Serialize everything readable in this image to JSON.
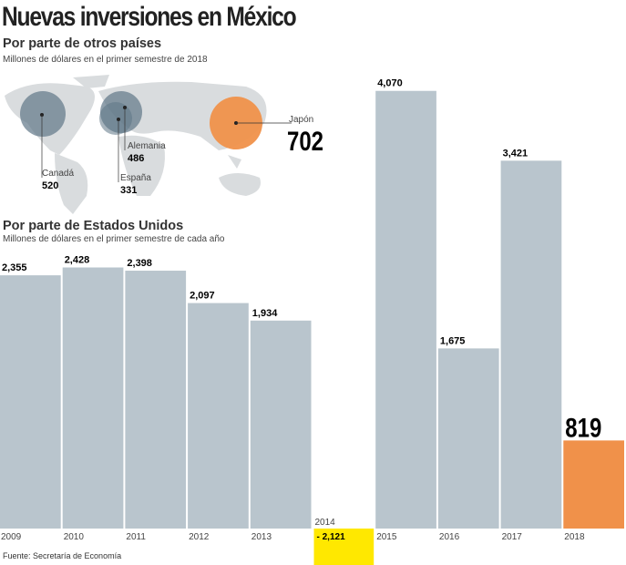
{
  "title": "Nuevas inversiones en México",
  "section_others": {
    "heading": "Por parte de otros países",
    "note": "Millones de dólares en el primer semestre de 2018",
    "countries": [
      {
        "name": "Canadá",
        "value": "520"
      },
      {
        "name": "Alemania",
        "value": "486"
      },
      {
        "name": "España",
        "value": "331"
      },
      {
        "name": "Japón",
        "value": "702"
      }
    ]
  },
  "section_us": {
    "heading": "Por parte de Estados Unidos",
    "note": "Millones de dólares en el primer semestre de cada año"
  },
  "source": "Fuente: Secretaría de Economía",
  "colors": {
    "bar": "#b9c5cd",
    "highlight": "#f0914a",
    "negative": "#ffe800",
    "bubble": "#5f7687"
  },
  "chart_data": {
    "type": "bar",
    "categories": [
      "2009",
      "2010",
      "2011",
      "2012",
      "2013",
      "2014",
      "2015",
      "2016",
      "2017",
      "2018"
    ],
    "values": [
      2355,
      2428,
      2398,
      2097,
      1934,
      -2121,
      4070,
      1675,
      3421,
      819
    ],
    "labels": [
      "2,355",
      "2,428",
      "2,398",
      "2,097",
      "1,934",
      "- 2,121",
      "4,070",
      "1,675",
      "3,421",
      "819"
    ],
    "title": "Por parte de Estados Unidos",
    "xlabel": "",
    "ylabel": "",
    "grid": false
  }
}
